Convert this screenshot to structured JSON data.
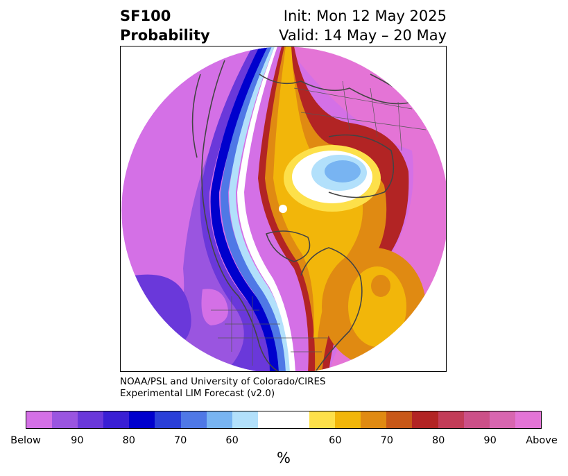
{
  "title": {
    "left_line1": "SF100",
    "left_line2": "Probability",
    "right_line1": "Init: Mon 12 May 2025",
    "right_line2": "Valid: 14 May – 20 May"
  },
  "credit": {
    "line1": "NOAA/PSL and University of Colorado/CIRES",
    "line2": "Experimental LIM Forecast (v2.0)"
  },
  "colorbar": {
    "colors": [
      "#d470e6",
      "#9a55e0",
      "#6a38da",
      "#3a1fd4",
      "#0000cd",
      "#2a3fd8",
      "#4f78e6",
      "#78b4f2",
      "#b2e0fb",
      "#ffffff",
      "#ffffff",
      "#fde04a",
      "#f2b60a",
      "#e08a12",
      "#c85818",
      "#b22424",
      "#c23c58",
      "#cc5088",
      "#d866b0",
      "#e474d6"
    ],
    "tick_labels": [
      "Below",
      "90",
      "80",
      "70",
      "60",
      "60",
      "70",
      "80",
      "90",
      "Above"
    ],
    "unit": "%"
  },
  "map": {
    "colors": {
      "below_far": "#d470e6",
      "below_mid": "#6a38da",
      "below_deep": "#0000cd",
      "above_deep": "#b22424",
      "above_mid": "#f2b60a",
      "above_far": "#e474d6"
    }
  }
}
